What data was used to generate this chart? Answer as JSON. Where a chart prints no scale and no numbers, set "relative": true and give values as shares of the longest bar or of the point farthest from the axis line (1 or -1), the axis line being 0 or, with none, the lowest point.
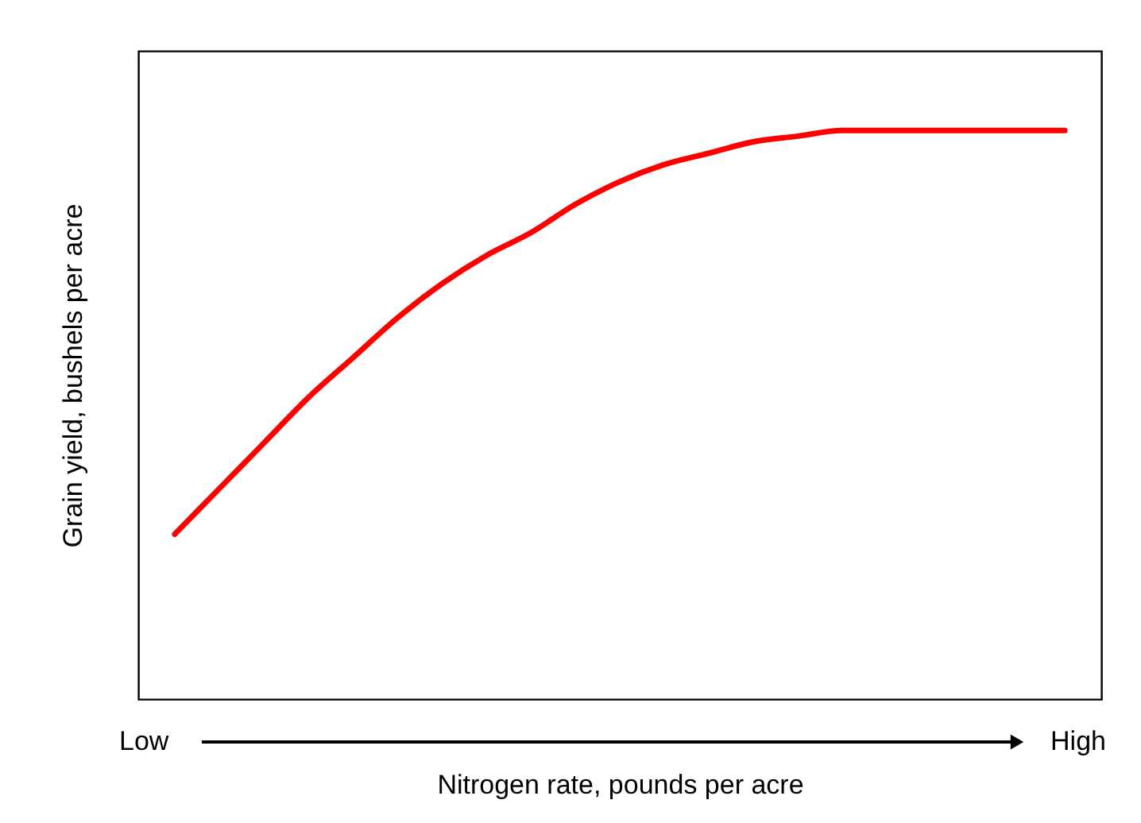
{
  "chart_data": {
    "type": "line",
    "relative": true,
    "xlabel": "Nitrogen rate, pounds per acre",
    "ylabel": "Grain yield, bushels per acre",
    "categories": [
      null,
      null,
      null,
      null,
      null,
      null,
      null,
      null,
      null,
      null,
      null,
      null,
      null,
      null,
      null,
      null,
      null,
      null,
      null,
      null,
      null
    ],
    "series": [
      {
        "color": "#ff0000",
        "values": [
          0.29,
          0.37,
          0.45,
          0.53,
          0.6,
          0.67,
          0.73,
          0.78,
          0.82,
          0.87,
          0.91,
          0.94,
          0.96,
          0.98,
          0.99,
          1.0,
          1.0,
          1.0,
          1.0,
          1.0,
          1.0
        ]
      }
    ],
    "annotations": [
      "Low",
      "High"
    ],
    "grid": false,
    "marker": "none",
    "line_style": "solid"
  }
}
